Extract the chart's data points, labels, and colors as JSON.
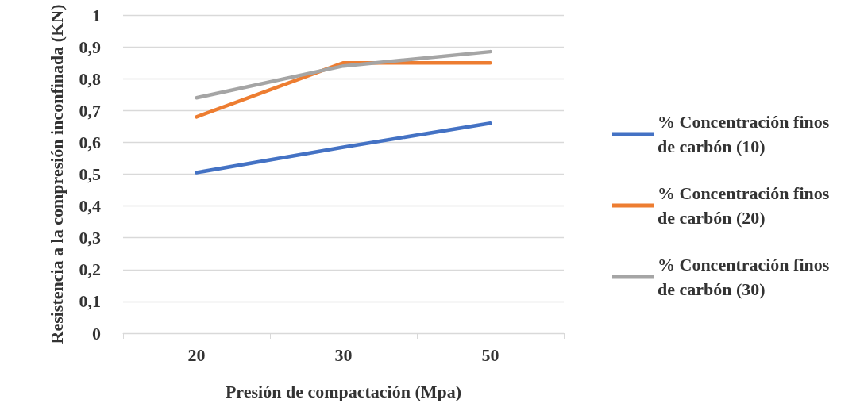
{
  "chart_data": {
    "type": "line",
    "xlabel": "Presión de compactación (Mpa)",
    "ylabel": "Resistencia a la compresión inconfinada (KN)",
    "categories": [
      "20",
      "30",
      "50"
    ],
    "series": [
      {
        "name": "% Concentración finos de carbón (10)",
        "color": "#4472c4",
        "values": [
          0.505,
          0.585,
          0.66
        ]
      },
      {
        "name": "% Concentración finos de carbón (20)",
        "color": "#ed7d31",
        "values": [
          0.68,
          0.85,
          0.85
        ]
      },
      {
        "name": "% Concentración finos de carbón (30)",
        "color": "#a5a5a5",
        "values": [
          0.74,
          0.84,
          0.885
        ]
      }
    ],
    "ylim": [
      0,
      1
    ],
    "yticks": [
      {
        "value": 0,
        "label": "0"
      },
      {
        "value": 0.1,
        "label": "0,1"
      },
      {
        "value": 0.2,
        "label": "0,2"
      },
      {
        "value": 0.3,
        "label": "0,3"
      },
      {
        "value": 0.4,
        "label": "0,4"
      },
      {
        "value": 0.5,
        "label": "0,5"
      },
      {
        "value": 0.6,
        "label": "0,6"
      },
      {
        "value": 0.7,
        "label": "0,7"
      },
      {
        "value": 0.8,
        "label": "0,8"
      },
      {
        "value": 0.9,
        "label": "0,9"
      },
      {
        "value": 1,
        "label": "1"
      }
    ],
    "grid": "y",
    "legend": "right",
    "marker": "none",
    "line_style": "solid"
  }
}
